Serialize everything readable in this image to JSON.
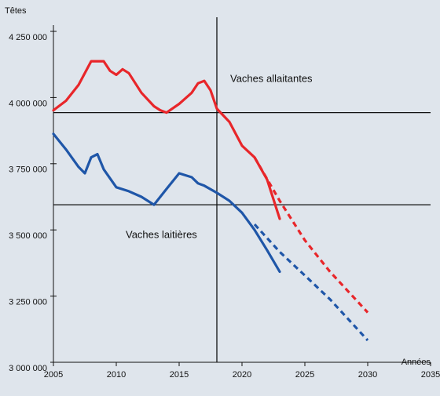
{
  "chart_data": {
    "type": "line",
    "y_label": "Têtes",
    "x_label": "Années",
    "xlim": [
      2005,
      2035
    ],
    "xticks": [
      2005,
      2010,
      2015,
      2020,
      2025,
      2030,
      2035
    ],
    "ylim": [
      3000000,
      4250000
    ],
    "yticks": [
      {
        "value": 3000000,
        "label": "3 000 000"
      },
      {
        "value": 3250000,
        "label": "3 250 000"
      },
      {
        "value": 3500000,
        "label": "3 500 000"
      },
      {
        "value": 3750000,
        "label": "3 750 000"
      },
      {
        "value": 4000000,
        "label": "4 000 000"
      },
      {
        "value": 4250000,
        "label": "4 250 000"
      }
    ],
    "hlines": [
      3943000,
      3595000
    ],
    "vline": 2018,
    "series": [
      {
        "name": "Vaches allaitantes",
        "color": "#e8262a",
        "dashed": false,
        "x": [
          2005,
          2006,
          2007,
          2008,
          2009,
          2009.5,
          2010,
          2010.5,
          2011,
          2012,
          2013,
          2013.5,
          2014,
          2015,
          2016,
          2016.5,
          2017,
          2017.5,
          2018,
          2019,
          2020,
          2021,
          2022,
          2023
        ],
        "values": [
          3952000,
          3988000,
          4048000,
          4137000,
          4137000,
          4101000,
          4086000,
          4107000,
          4092000,
          4018000,
          3967000,
          3952000,
          3943000,
          3976000,
          4018000,
          4054000,
          4063000,
          4027000,
          3958000,
          3908000,
          3818000,
          3774000,
          3690000,
          3542000
        ]
      },
      {
        "color": "#e8262a",
        "dashed": true,
        "x": [
          2021,
          2023,
          2025,
          2027,
          2030
        ],
        "values": [
          3774000,
          3610000,
          3461000,
          3342000,
          3188000
        ]
      },
      {
        "name": "Vaches laitières",
        "color": "#1f56a8",
        "dashed": false,
        "x": [
          2005,
          2006,
          2007,
          2007.5,
          2008,
          2008.5,
          2009,
          2010,
          2011,
          2012,
          2013,
          2014,
          2015,
          2016,
          2016.5,
          2017,
          2018,
          2019,
          2020,
          2021,
          2022,
          2023
        ],
        "values": [
          3863000,
          3804000,
          3738000,
          3714000,
          3774000,
          3786000,
          3729000,
          3661000,
          3646000,
          3625000,
          3595000,
          3655000,
          3714000,
          3699000,
          3676000,
          3667000,
          3640000,
          3610000,
          3565000,
          3500000,
          3423000,
          3342000
        ]
      },
      {
        "color": "#1f56a8",
        "dashed": true,
        "x": [
          2021,
          2023,
          2025,
          2027,
          2030
        ],
        "values": [
          3521000,
          3417000,
          3328000,
          3238000,
          3083000
        ]
      }
    ]
  }
}
